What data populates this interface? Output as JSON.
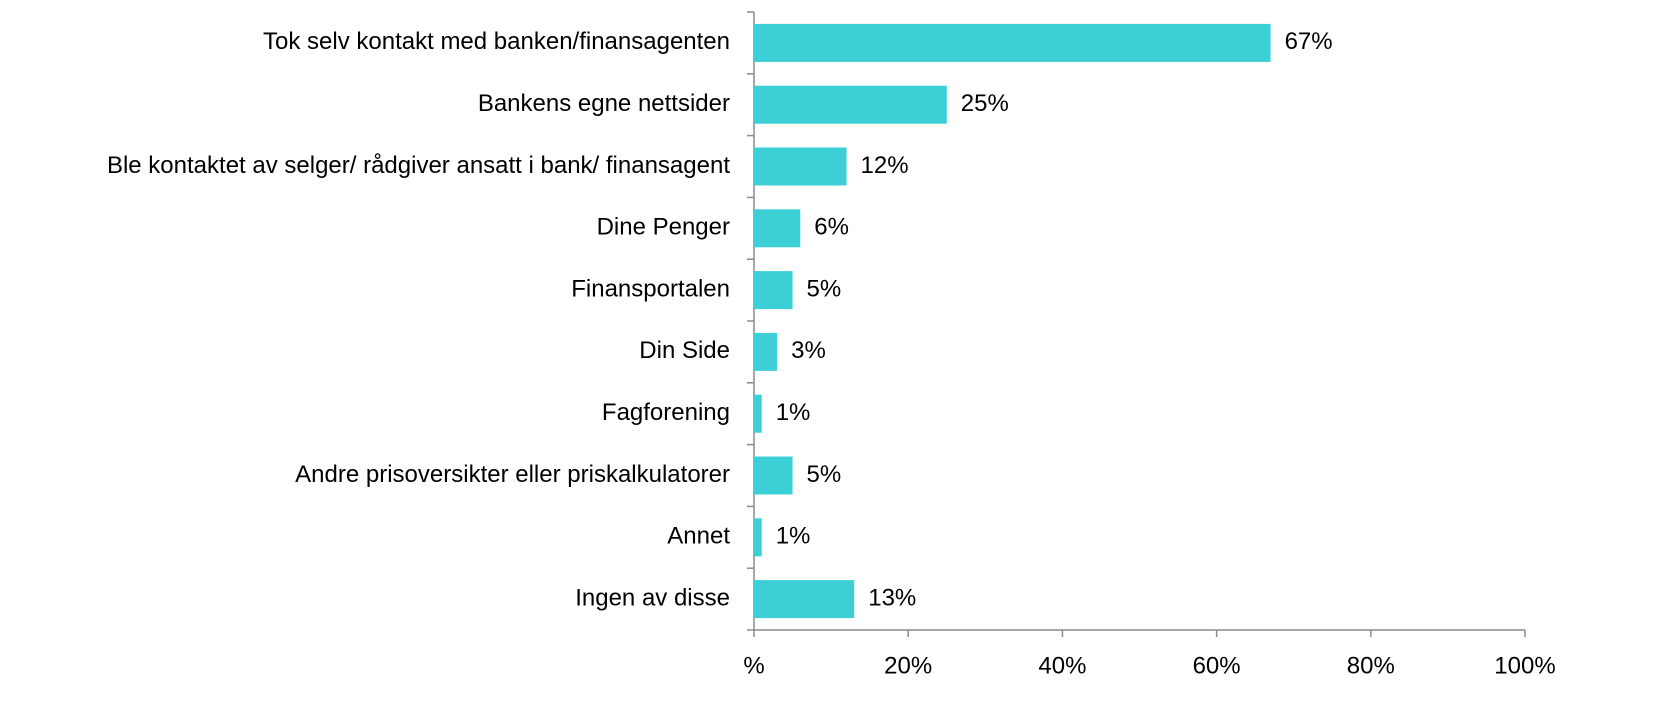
{
  "chart_data": {
    "type": "bar",
    "orientation": "horizontal",
    "categories": [
      "Tok selv kontakt med banken/finansagenten",
      "Bankens egne nettsider",
      "Ble kontaktet av selger/ rådgiver ansatt i bank/ finansagent",
      "Dine Penger",
      "Finansportalen",
      "Din Side",
      "Fagforening",
      "Andre prisoversikter eller priskalkulatorer",
      "Annet",
      "Ingen av disse"
    ],
    "values": [
      67,
      25,
      12,
      6,
      5,
      3,
      1,
      5,
      1,
      13
    ],
    "value_labels": [
      "67%",
      "25%",
      "12%",
      "6%",
      "5%",
      "3%",
      "1%",
      "5%",
      "1%",
      "13%"
    ],
    "color": "#3ccfd6",
    "xlim": [
      0,
      100
    ],
    "xticks": [
      {
        "value": 0,
        "label": "%"
      },
      {
        "value": 20,
        "label": "20%"
      },
      {
        "value": 40,
        "label": "40%"
      },
      {
        "value": 60,
        "label": "60%"
      },
      {
        "value": 80,
        "label": "80%"
      },
      {
        "value": 100,
        "label": "100%"
      }
    ],
    "grid": false
  }
}
